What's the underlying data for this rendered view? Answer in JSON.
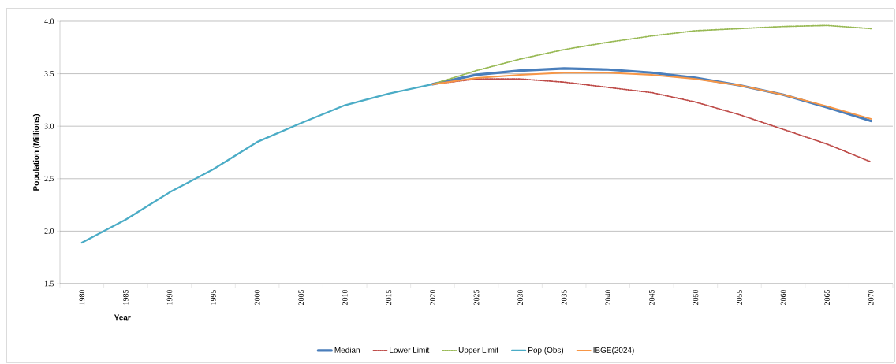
{
  "chart_data": {
    "type": "line",
    "xlabel": "Year",
    "ylabel": "Population (Millions)",
    "categories": [
      "1980",
      "1985",
      "1990",
      "1995",
      "2000",
      "2005",
      "2010",
      "2015",
      "2020",
      "2025",
      "2030",
      "2035",
      "2040",
      "2045",
      "2050",
      "2055",
      "2060",
      "2065",
      "2070"
    ],
    "series": [
      {
        "name": "Median",
        "color": "#4a7ebb",
        "line_style": "solid",
        "values": [
          null,
          null,
          null,
          null,
          null,
          null,
          null,
          null,
          3.4,
          3.49,
          3.53,
          3.55,
          3.54,
          3.51,
          3.46,
          3.39,
          3.3,
          3.18,
          3.05
        ]
      },
      {
        "name": "Lower Limit",
        "color": "#be4b48",
        "line_style": "dotted",
        "values": [
          null,
          null,
          null,
          null,
          null,
          null,
          null,
          null,
          3.4,
          3.45,
          3.45,
          3.42,
          3.37,
          3.32,
          3.23,
          3.11,
          2.97,
          2.83,
          2.66
        ]
      },
      {
        "name": "Upper Limit",
        "color": "#98b954",
        "line_style": "dotted",
        "values": [
          null,
          null,
          null,
          null,
          null,
          null,
          null,
          null,
          3.4,
          3.53,
          3.64,
          3.73,
          3.8,
          3.86,
          3.91,
          3.93,
          3.95,
          3.96,
          3.93
        ]
      },
      {
        "name": "Pop (Obs)",
        "color": "#4bacc6",
        "line_style": "solid",
        "values": [
          1.89,
          2.11,
          2.37,
          2.59,
          2.85,
          3.03,
          3.2,
          3.31,
          3.4,
          null,
          null,
          null,
          null,
          null,
          null,
          null,
          null,
          null,
          null
        ]
      },
      {
        "name": "IBGE(2024)",
        "color": "#f79646",
        "line_style": "solid",
        "values": [
          null,
          null,
          null,
          null,
          null,
          null,
          null,
          null,
          3.4,
          3.46,
          3.49,
          3.51,
          3.51,
          3.49,
          3.45,
          3.39,
          3.3,
          3.19,
          3.07
        ]
      }
    ],
    "ylim": [
      1.5,
      4.0
    ],
    "yticks": [
      {
        "value": 1.5,
        "label": "1.5"
      },
      {
        "value": 2.0,
        "label": "2.0"
      },
      {
        "value": 2.5,
        "label": "2.5"
      },
      {
        "value": 3.0,
        "label": "3.0"
      },
      {
        "value": 3.5,
        "label": "3.5"
      },
      {
        "value": 4.0,
        "label": "4.0"
      }
    ],
    "grid": "y",
    "legend": "bottom"
  }
}
